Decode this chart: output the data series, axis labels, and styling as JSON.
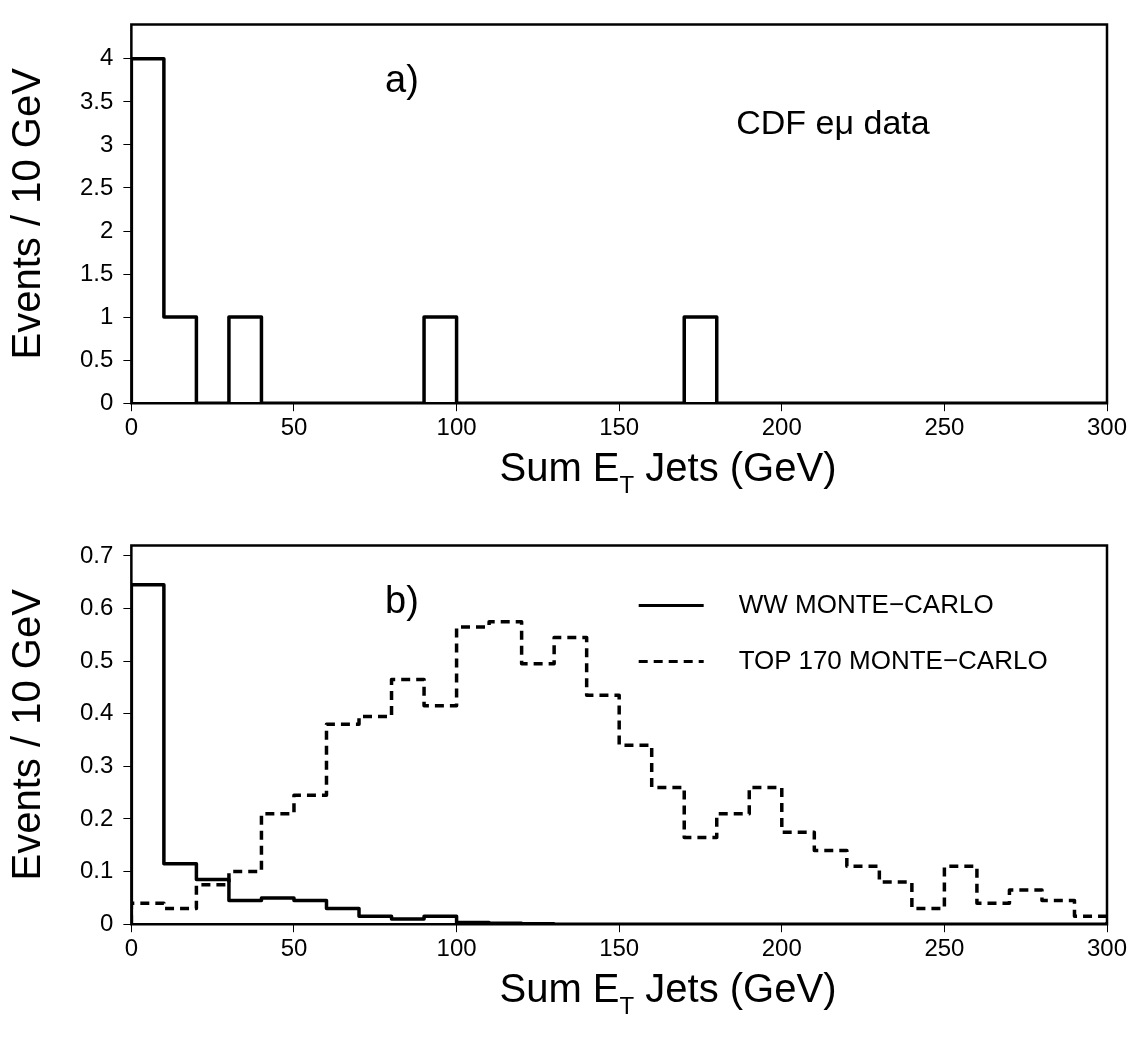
{
  "chart_data": [
    {
      "type": "histogram",
      "xlabel": "Sum E$_{T}$ Jets (GeV)",
      "ylabel": "Events / 10 GeV",
      "annotations": [
        "a)",
        "CDF eμ data"
      ],
      "bins": [
        0,
        10,
        20,
        30,
        40,
        50,
        60,
        70,
        80,
        90,
        100,
        110,
        120,
        130,
        140,
        150,
        160,
        170,
        180,
        190,
        200,
        210,
        220,
        230,
        240,
        250,
        260,
        270,
        280,
        290,
        300
      ],
      "series": [
        {
          "color": "#000000",
          "line_style": "solid",
          "values": [
            4,
            1,
            0,
            1,
            0,
            0,
            0,
            0,
            0,
            1,
            0,
            0,
            0,
            0,
            0,
            0,
            0,
            1,
            0,
            0,
            0,
            0,
            0,
            0,
            0,
            0,
            0,
            0,
            0,
            0
          ]
        }
      ],
      "xlim": [
        0,
        300
      ],
      "xticks": [
        0,
        50,
        100,
        150,
        200,
        250,
        300
      ],
      "ylim": [
        0,
        4.4
      ],
      "yticks": [
        0,
        0.5,
        1,
        1.5,
        2,
        2.5,
        3,
        3.5,
        4
      ],
      "grid": false,
      "legend": false
    },
    {
      "type": "histogram",
      "xlabel": "Sum E$_{T}$ Jets (GeV)",
      "ylabel": "Events / 10 GeV",
      "annotations": [
        "b)"
      ],
      "bins": [
        0,
        10,
        20,
        30,
        40,
        50,
        60,
        70,
        80,
        90,
        100,
        110,
        120,
        130,
        140,
        150,
        160,
        170,
        180,
        190,
        200,
        210,
        220,
        230,
        240,
        250,
        260,
        270,
        280,
        290,
        300
      ],
      "series": [
        {
          "name": "WW MONTE−CARLO",
          "color": "#000000",
          "line_style": "solid",
          "values": [
            0.645,
            0.115,
            0.085,
            0.045,
            0.05,
            0.045,
            0.03,
            0.015,
            0.01,
            0.015,
            0.003,
            0.002,
            0.001,
            0,
            0,
            0,
            0,
            0,
            0,
            0,
            0,
            0,
            0,
            0,
            0,
            0,
            0,
            0,
            0,
            0
          ]
        },
        {
          "name": "TOP 170 MONTE−CARLO",
          "color": "#000000",
          "line_style": "dashed",
          "values": [
            0.04,
            0.03,
            0.075,
            0.1,
            0.21,
            0.245,
            0.38,
            0.395,
            0.465,
            0.415,
            0.565,
            0.575,
            0.495,
            0.545,
            0.435,
            0.34,
            0.26,
            0.165,
            0.21,
            0.26,
            0.175,
            0.14,
            0.11,
            0.08,
            0.03,
            0.11,
            0.04,
            0.065,
            0.045,
            0.015
          ]
        }
      ],
      "xlim": [
        0,
        300
      ],
      "xticks": [
        0,
        50,
        100,
        150,
        200,
        250,
        300
      ],
      "ylim": [
        0,
        0.72
      ],
      "yticks": [
        0,
        0.1,
        0.2,
        0.3,
        0.4,
        0.5,
        0.6,
        0.7
      ],
      "grid": false,
      "legend": "top right"
    }
  ]
}
